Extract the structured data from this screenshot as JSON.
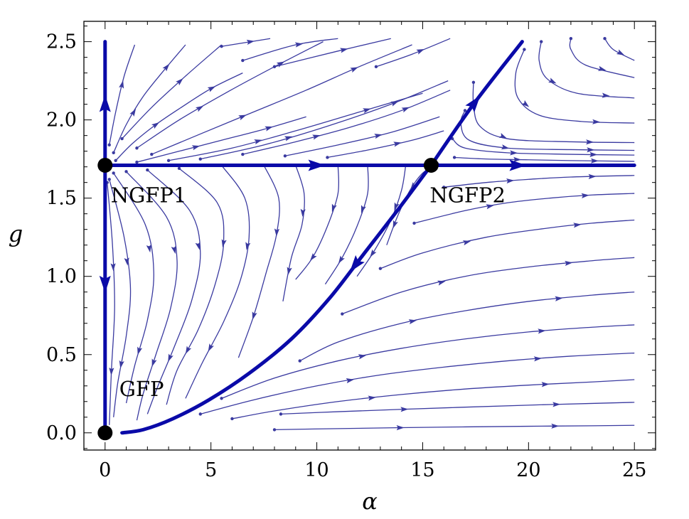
{
  "chart_data": {
    "type": "streamplot",
    "xlabel": "α",
    "ylabel": "g",
    "xlim": [
      -1,
      26
    ],
    "ylim": [
      -0.11,
      2.63
    ],
    "xticks": [
      0,
      5,
      10,
      15,
      20,
      25
    ],
    "yticks": [
      0.0,
      0.5,
      1.0,
      1.5,
      2.0,
      2.5
    ],
    "xtick_labels": [
      "0",
      "5",
      "10",
      "15",
      "20",
      "25"
    ],
    "ytick_labels": [
      "0.0",
      "0.5",
      "1.0",
      "1.5",
      "2.0",
      "2.5"
    ],
    "colors": {
      "streamlines": "#3a3aa0",
      "separatrices": "#0a0aa8",
      "fixed_points": "#000000"
    },
    "fixed_points": [
      {
        "name": "GFP",
        "x": 0,
        "y": 0
      },
      {
        "name": "NGFP1",
        "x": 0,
        "y": 1.71
      },
      {
        "name": "NGFP2",
        "x": 15.4,
        "y": 1.71
      }
    ],
    "separatrices": [
      {
        "points": [
          [
            0,
            1.71
          ],
          [
            0,
            2.5
          ]
        ],
        "arrows_at": [
          0.5
        ]
      },
      {
        "points": [
          [
            0,
            1.71
          ],
          [
            0,
            0.02
          ]
        ],
        "arrows_at": [
          0.45
        ]
      },
      {
        "points": [
          [
            0,
            1.71
          ],
          [
            25,
            1.71
          ]
        ],
        "arrows_at": [
          0.4,
          0.78
        ]
      },
      {
        "points": [
          [
            15.4,
            1.71
          ],
          [
            17.4,
            2.1
          ],
          [
            19.7,
            2.5
          ]
        ],
        "arrows_at": [
          0.5
        ]
      },
      {
        "points": [
          [
            15.4,
            1.71
          ],
          [
            13.8,
            1.42
          ],
          [
            12.2,
            1.14
          ],
          [
            10.6,
            0.86
          ],
          [
            8.8,
            0.6
          ],
          [
            6.8,
            0.38
          ],
          [
            4.9,
            0.21
          ],
          [
            3.2,
            0.09
          ],
          [
            1.8,
            0.02
          ],
          [
            0.8,
            0.0
          ]
        ],
        "arrows_at": [
          0.3
        ]
      }
    ],
    "streamlines": [
      [
        [
          8.0,
          0.02
        ],
        [
          11,
          0.027
        ],
        [
          14,
          0.033
        ],
        [
          17,
          0.038
        ],
        [
          20,
          0.042
        ],
        [
          23,
          0.045
        ],
        [
          25,
          0.048
        ]
      ],
      [
        [
          8.3,
          0.12
        ],
        [
          11,
          0.135
        ],
        [
          14,
          0.15
        ],
        [
          17,
          0.164
        ],
        [
          20,
          0.177
        ],
        [
          23,
          0.188
        ],
        [
          25,
          0.195
        ]
      ],
      [
        [
          6.0,
          0.09
        ],
        [
          8,
          0.14
        ],
        [
          11,
          0.2
        ],
        [
          14,
          0.245
        ],
        [
          17,
          0.28
        ],
        [
          20,
          0.305
        ],
        [
          23,
          0.325
        ],
        [
          25,
          0.34
        ]
      ],
      [
        [
          4.5,
          0.12
        ],
        [
          7,
          0.21
        ],
        [
          10,
          0.3
        ],
        [
          13,
          0.37
        ],
        [
          16,
          0.42
        ],
        [
          19,
          0.46
        ],
        [
          22,
          0.49
        ],
        [
          25,
          0.51
        ]
      ],
      [
        [
          5.5,
          0.22
        ],
        [
          8,
          0.35
        ],
        [
          11,
          0.46
        ],
        [
          14,
          0.54
        ],
        [
          17,
          0.6
        ],
        [
          20,
          0.645
        ],
        [
          23,
          0.675
        ],
        [
          25,
          0.69
        ]
      ],
      [
        [
          9.2,
          0.46
        ],
        [
          11,
          0.58
        ],
        [
          14,
          0.7
        ],
        [
          17,
          0.78
        ],
        [
          20,
          0.84
        ],
        [
          23,
          0.88
        ],
        [
          25,
          0.9
        ]
      ],
      [
        [
          11.2,
          0.76
        ],
        [
          14,
          0.9
        ],
        [
          17,
          1.0
        ],
        [
          20,
          1.06
        ],
        [
          23,
          1.1
        ],
        [
          25,
          1.12
        ]
      ],
      [
        [
          13.0,
          1.05
        ],
        [
          15,
          1.15
        ],
        [
          18,
          1.25
        ],
        [
          21,
          1.31
        ],
        [
          23,
          1.34
        ],
        [
          25,
          1.36
        ]
      ],
      [
        [
          14.6,
          1.34
        ],
        [
          17,
          1.42
        ],
        [
          19,
          1.47
        ],
        [
          21,
          1.5
        ],
        [
          23,
          1.52
        ],
        [
          25,
          1.53
        ]
      ],
      [
        [
          16.0,
          1.57
        ],
        [
          18,
          1.6
        ],
        [
          20,
          1.62
        ],
        [
          22,
          1.635
        ],
        [
          25,
          1.645
        ]
      ],
      [
        [
          16.5,
          1.76
        ],
        [
          18,
          1.75
        ],
        [
          20,
          1.745
        ],
        [
          22,
          1.74
        ],
        [
          25,
          1.735
        ]
      ],
      [
        [
          16.4,
          1.88
        ],
        [
          17,
          1.82
        ],
        [
          19,
          1.79
        ],
        [
          22,
          1.78
        ],
        [
          25,
          1.775
        ]
      ],
      [
        [
          17.0,
          2.06
        ],
        [
          16.8,
          1.98
        ],
        [
          17.2,
          1.87
        ],
        [
          19,
          1.82
        ],
        [
          22,
          1.81
        ],
        [
          25,
          1.805
        ]
      ],
      [
        [
          17.4,
          2.24
        ],
        [
          17.4,
          2.1
        ],
        [
          17.7,
          1.96
        ],
        [
          19,
          1.88
        ],
        [
          22,
          1.86
        ],
        [
          25,
          1.855
        ]
      ],
      [
        [
          19.8,
          2.45
        ],
        [
          19.4,
          2.3
        ],
        [
          19.5,
          2.14
        ],
        [
          20.5,
          2.03
        ],
        [
          22.5,
          1.99
        ],
        [
          25,
          1.98
        ]
      ],
      [
        [
          20.6,
          2.5
        ],
        [
          20.5,
          2.38
        ],
        [
          20.9,
          2.26
        ],
        [
          22.3,
          2.17
        ],
        [
          25,
          2.14
        ]
      ],
      [
        [
          22.0,
          2.52
        ],
        [
          22.0,
          2.45
        ],
        [
          22.7,
          2.35
        ],
        [
          25,
          2.27
        ]
      ],
      [
        [
          23.6,
          2.52
        ],
        [
          24,
          2.45
        ],
        [
          25,
          2.38
        ]
      ],
      [
        [
          15.7,
          1.72
        ],
        [
          15.0,
          1.66
        ],
        [
          14.4,
          1.55
        ],
        [
          13.8,
          1.38
        ],
        [
          13.3,
          1.2
        ]
      ],
      [
        [
          14.2,
          1.71
        ],
        [
          14.0,
          1.55
        ],
        [
          13.5,
          1.36
        ],
        [
          12.7,
          1.16
        ],
        [
          11.9,
          1.0
        ]
      ],
      [
        [
          12.4,
          1.71
        ],
        [
          12.4,
          1.53
        ],
        [
          11.9,
          1.32
        ],
        [
          11.2,
          1.12
        ],
        [
          10.4,
          0.95
        ]
      ],
      [
        [
          11.0,
          1.71
        ],
        [
          11.0,
          1.53
        ],
        [
          10.5,
          1.32
        ],
        [
          9.8,
          1.12
        ],
        [
          9.0,
          0.98
        ]
      ],
      [
        [
          9.0,
          1.71
        ],
        [
          9.4,
          1.53
        ],
        [
          9.3,
          1.33
        ],
        [
          8.8,
          1.12
        ],
        [
          8.4,
          0.84
        ]
      ],
      [
        [
          7.5,
          1.71
        ],
        [
          8.2,
          1.5
        ],
        [
          8.1,
          1.27
        ],
        [
          7.6,
          1.02
        ],
        [
          7.0,
          0.74
        ],
        [
          6.3,
          0.48
        ]
      ],
      [
        [
          5.5,
          1.71
        ],
        [
          6.6,
          1.5
        ],
        [
          6.8,
          1.25
        ],
        [
          6.4,
          0.98
        ],
        [
          5.6,
          0.71
        ],
        [
          4.6,
          0.45
        ],
        [
          3.8,
          0.22
        ]
      ],
      [
        [
          3.5,
          1.69
        ],
        [
          5.3,
          1.47
        ],
        [
          5.6,
          1.22
        ],
        [
          5.2,
          0.95
        ],
        [
          4.4,
          0.66
        ],
        [
          3.4,
          0.4
        ],
        [
          2.9,
          0.18
        ]
      ],
      [
        [
          2.0,
          1.68
        ],
        [
          4.0,
          1.42
        ],
        [
          4.5,
          1.15
        ],
        [
          4.1,
          0.85
        ],
        [
          3.3,
          0.56
        ],
        [
          2.5,
          0.3
        ],
        [
          2.0,
          0.12
        ]
      ],
      [
        [
          1.0,
          1.67
        ],
        [
          2.9,
          1.38
        ],
        [
          3.4,
          1.1
        ],
        [
          3.1,
          0.8
        ],
        [
          2.4,
          0.5
        ],
        [
          1.8,
          0.25
        ],
        [
          1.5,
          0.08
        ]
      ],
      [
        [
          0.4,
          1.66
        ],
        [
          1.9,
          1.33
        ],
        [
          2.3,
          1.02
        ],
        [
          2.0,
          0.72
        ],
        [
          1.4,
          0.43
        ],
        [
          1.0,
          0.19
        ]
      ],
      [
        [
          0.2,
          1.62
        ],
        [
          0.9,
          1.25
        ],
        [
          1.2,
          0.92
        ],
        [
          1.0,
          0.62
        ],
        [
          0.6,
          0.32
        ],
        [
          0.4,
          0.1
        ]
      ],
      [
        [
          0.1,
          1.6
        ],
        [
          0.35,
          1.2
        ],
        [
          0.45,
          0.8
        ],
        [
          0.3,
          0.4
        ],
        [
          0.2,
          0.05
        ]
      ],
      [
        [
          0.5,
          1.74
        ],
        [
          1.3,
          1.85
        ],
        [
          2.4,
          1.97
        ],
        [
          3.6,
          2.08
        ],
        [
          5.0,
          2.2
        ],
        [
          6.5,
          2.3
        ]
      ],
      [
        [
          0.4,
          1.79
        ],
        [
          1.0,
          1.97
        ],
        [
          1.8,
          2.15
        ],
        [
          2.8,
          2.32
        ],
        [
          3.8,
          2.48
        ]
      ],
      [
        [
          0.2,
          1.84
        ],
        [
          0.5,
          2.05
        ],
        [
          0.9,
          2.28
        ],
        [
          1.4,
          2.48
        ]
      ],
      [
        [
          1.5,
          1.73
        ],
        [
          3.5,
          1.8
        ],
        [
          5.5,
          1.87
        ],
        [
          7.5,
          1.94
        ],
        [
          9.5,
          2.02
        ]
      ],
      [
        [
          3.0,
          1.74
        ],
        [
          6,
          1.82
        ],
        [
          9,
          1.93
        ],
        [
          12,
          2.05
        ],
        [
          15,
          2.17
        ]
      ],
      [
        [
          4.5,
          1.75
        ],
        [
          7.5,
          1.84
        ],
        [
          10.5,
          1.96
        ],
        [
          13.5,
          2.1
        ],
        [
          16.2,
          2.25
        ]
      ],
      [
        [
          2.2,
          1.78
        ],
        [
          4.5,
          1.91
        ],
        [
          7,
          2.05
        ],
        [
          9.5,
          2.19
        ],
        [
          12,
          2.34
        ],
        [
          14.5,
          2.48
        ]
      ],
      [
        [
          1.5,
          1.82
        ],
        [
          3.5,
          2.0
        ],
        [
          5.8,
          2.18
        ],
        [
          8,
          2.34
        ],
        [
          10.3,
          2.5
        ]
      ],
      [
        [
          0.8,
          1.88
        ],
        [
          2.2,
          2.08
        ],
        [
          3.8,
          2.28
        ],
        [
          5.5,
          2.48
        ]
      ],
      [
        [
          5.5,
          2.47
        ],
        [
          7.8,
          2.52
        ]
      ],
      [
        [
          6.5,
          2.38
        ],
        [
          9,
          2.48
        ],
        [
          11,
          2.52
        ]
      ],
      [
        [
          8.0,
          2.34
        ],
        [
          11,
          2.44
        ],
        [
          13.5,
          2.52
        ]
      ],
      [
        [
          12.8,
          2.34
        ],
        [
          14.5,
          2.42
        ],
        [
          16.3,
          2.52
        ]
      ],
      [
        [
          6.5,
          1.78
        ],
        [
          9,
          1.86
        ],
        [
          11.5,
          1.95
        ],
        [
          14,
          2.06
        ],
        [
          16.3,
          2.19
        ]
      ],
      [
        [
          8.5,
          1.77
        ],
        [
          11,
          1.84
        ],
        [
          13.5,
          1.92
        ],
        [
          15.8,
          2.02
        ]
      ],
      [
        [
          10.5,
          1.76
        ],
        [
          12.5,
          1.81
        ],
        [
          14.5,
          1.87
        ],
        [
          16,
          1.93
        ]
      ]
    ]
  }
}
